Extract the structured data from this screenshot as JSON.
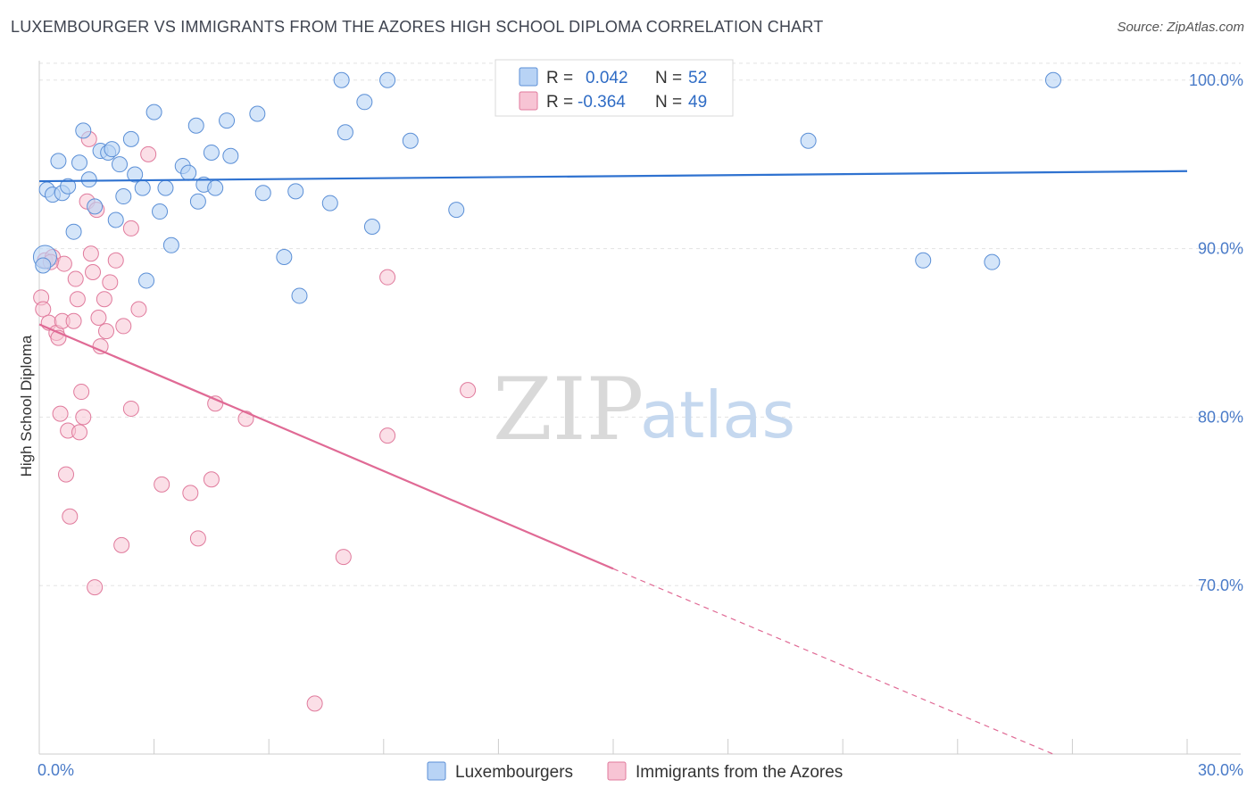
{
  "title": "LUXEMBOURGER VS IMMIGRANTS FROM THE AZORES HIGH SCHOOL DIPLOMA CORRELATION CHART",
  "source": "Source: ZipAtlas.com",
  "watermark": {
    "zip": "ZIP",
    "atlas": "atlas"
  },
  "colors": {
    "blue_fill": "#b8d3f5",
    "blue_stroke": "#5b8fd6",
    "blue_line": "#2f72d0",
    "pink_fill": "#f7c4d4",
    "pink_stroke": "#e07a9c",
    "pink_line": "#e06a95",
    "grid": "#e3e3e3",
    "axis_label": "#4a7bc8"
  },
  "legend": {
    "r_label": "R =",
    "n_label": "N =",
    "series": [
      {
        "r": "0.042",
        "n": "52"
      },
      {
        "r": "-0.364",
        "n": "49"
      }
    ]
  },
  "chart_data": {
    "type": "scatter",
    "title": "LUXEMBOURGER VS IMMIGRANTS FROM THE AZORES HIGH SCHOOL DIPLOMA CORRELATION CHART",
    "xlabel": "",
    "ylabel": "High School Diploma",
    "xlim": [
      0,
      30
    ],
    "ylim": [
      60,
      102
    ],
    "x_tick_labels": [
      {
        "v": 0,
        "label": "0.0%"
      },
      {
        "v": 30,
        "label": "30.0%"
      }
    ],
    "x_ticks": [
      0,
      3,
      6,
      9,
      12,
      15,
      18,
      21,
      24,
      27,
      30
    ],
    "y_ticks": [
      {
        "v": 100,
        "label": "100.0%"
      },
      {
        "v": 90,
        "label": "90.0%"
      },
      {
        "v": 80,
        "label": "80.0%"
      },
      {
        "v": 70,
        "label": "70.0%"
      }
    ],
    "series": [
      {
        "name": "Luxembourgers",
        "r": 0.042,
        "n": 52,
        "trend": {
          "x0": 0,
          "y0": 94.0,
          "x1": 30,
          "y1": 94.6,
          "dashed_from": null
        },
        "points": [
          [
            0.15,
            89.5
          ],
          [
            0.2,
            93.5
          ],
          [
            0.35,
            93.2
          ],
          [
            0.5,
            95.2
          ],
          [
            0.6,
            93.3
          ],
          [
            0.75,
            93.7
          ],
          [
            0.9,
            91.0
          ],
          [
            1.05,
            95.1
          ],
          [
            1.15,
            97.0
          ],
          [
            1.3,
            94.1
          ],
          [
            1.45,
            92.5
          ],
          [
            1.6,
            95.8
          ],
          [
            1.8,
            95.7
          ],
          [
            1.9,
            95.9
          ],
          [
            2.0,
            91.7
          ],
          [
            2.1,
            95.0
          ],
          [
            2.2,
            93.1
          ],
          [
            2.4,
            96.5
          ],
          [
            2.5,
            94.4
          ],
          [
            2.7,
            93.6
          ],
          [
            2.8,
            88.1
          ],
          [
            3.0,
            98.1
          ],
          [
            3.15,
            92.2
          ],
          [
            3.3,
            93.6
          ],
          [
            3.45,
            90.2
          ],
          [
            3.75,
            94.9
          ],
          [
            3.9,
            94.5
          ],
          [
            4.1,
            97.3
          ],
          [
            4.15,
            92.8
          ],
          [
            4.3,
            93.8
          ],
          [
            4.5,
            95.7
          ],
          [
            4.6,
            93.6
          ],
          [
            4.9,
            97.6
          ],
          [
            5.0,
            95.5
          ],
          [
            5.7,
            98.0
          ],
          [
            5.85,
            93.3
          ],
          [
            6.4,
            89.5
          ],
          [
            6.7,
            93.4
          ],
          [
            6.8,
            87.2
          ],
          [
            7.6,
            92.7
          ],
          [
            7.9,
            100.0
          ],
          [
            8.0,
            96.9
          ],
          [
            8.5,
            98.7
          ],
          [
            8.7,
            91.3
          ],
          [
            9.1,
            100.0
          ],
          [
            9.7,
            96.4
          ],
          [
            10.9,
            92.3
          ],
          [
            20.1,
            96.4
          ],
          [
            23.1,
            89.3
          ],
          [
            24.9,
            89.2
          ],
          [
            26.5,
            100.0
          ],
          [
            0.1,
            89.0
          ]
        ]
      },
      {
        "name": "Immigrants from the Azores",
        "r": -0.364,
        "n": 49,
        "trend": {
          "x0": 0,
          "y0": 85.5,
          "x1": 15.0,
          "y1": 71.0,
          "x2": 26.5,
          "y2": 60.0,
          "dashed_from": 15.0
        },
        "points": [
          [
            0.05,
            87.1
          ],
          [
            0.1,
            86.4
          ],
          [
            0.15,
            89.3
          ],
          [
            0.25,
            85.6
          ],
          [
            0.35,
            89.5
          ],
          [
            0.45,
            85.0
          ],
          [
            0.5,
            84.7
          ],
          [
            0.55,
            80.2
          ],
          [
            0.6,
            85.7
          ],
          [
            0.65,
            89.1
          ],
          [
            0.7,
            76.6
          ],
          [
            0.75,
            79.2
          ],
          [
            0.8,
            74.1
          ],
          [
            0.9,
            85.7
          ],
          [
            0.95,
            88.2
          ],
          [
            1.0,
            87.0
          ],
          [
            1.05,
            79.1
          ],
          [
            1.1,
            81.5
          ],
          [
            1.15,
            80.0
          ],
          [
            1.25,
            92.8
          ],
          [
            1.3,
            96.5
          ],
          [
            1.35,
            89.7
          ],
          [
            1.4,
            88.6
          ],
          [
            1.45,
            69.9
          ],
          [
            1.5,
            92.3
          ],
          [
            1.55,
            85.9
          ],
          [
            1.6,
            84.2
          ],
          [
            1.7,
            87.0
          ],
          [
            1.75,
            85.1
          ],
          [
            1.85,
            88.0
          ],
          [
            2.0,
            89.3
          ],
          [
            2.15,
            72.4
          ],
          [
            2.2,
            85.4
          ],
          [
            2.4,
            91.2
          ],
          [
            2.4,
            80.5
          ],
          [
            2.6,
            86.4
          ],
          [
            2.85,
            95.6
          ],
          [
            3.2,
            76.0
          ],
          [
            3.95,
            75.5
          ],
          [
            4.15,
            72.8
          ],
          [
            4.5,
            76.3
          ],
          [
            4.6,
            80.8
          ],
          [
            5.4,
            79.9
          ],
          [
            7.2,
            63.0
          ],
          [
            7.95,
            71.7
          ],
          [
            9.1,
            78.9
          ],
          [
            9.1,
            88.3
          ],
          [
            11.2,
            81.6
          ],
          [
            0.3,
            89.2
          ]
        ]
      }
    ]
  }
}
